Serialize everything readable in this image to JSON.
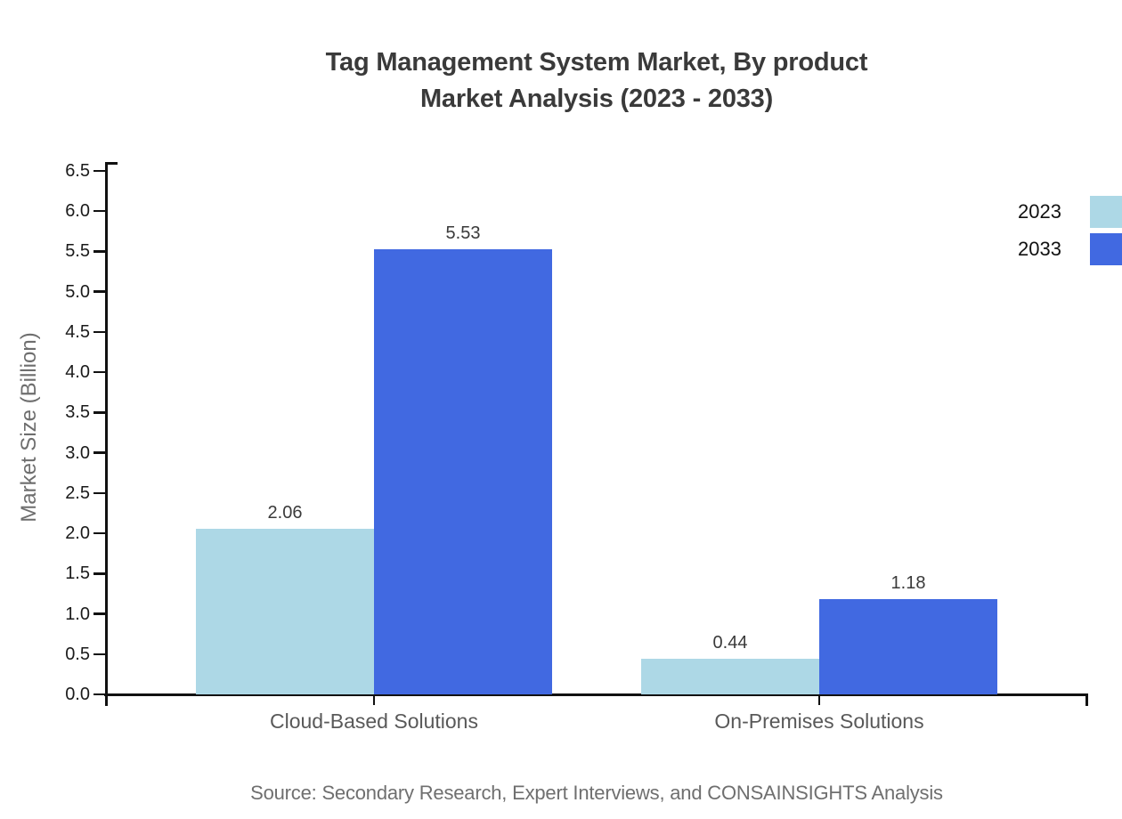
{
  "title": {
    "line1": "Tag Management System Market, By product",
    "line2": "Market Analysis (2023 - 2033)"
  },
  "source": "Source: Secondary Research, Expert Interviews, and CONSAINSIGHTS Analysis",
  "legend": {
    "entries": [
      {
        "label": "2023",
        "color": "#ADD8E6"
      },
      {
        "label": "2033",
        "color": "#4169E1"
      }
    ]
  },
  "chart_data": {
    "type": "bar",
    "title": "Tag Management System Market, By product Market Analysis (2023 - 2033)",
    "categories": [
      "Cloud-Based Solutions",
      "On-Premises Solutions"
    ],
    "series": [
      {
        "name": "2023",
        "color": "#ADD8E6",
        "values": [
          2.06,
          0.44
        ]
      },
      {
        "name": "2033",
        "color": "#4169E1",
        "values": [
          5.53,
          1.18
        ]
      }
    ],
    "value_labels": [
      [
        "2.06",
        "0.44"
      ],
      [
        "5.53",
        "1.18"
      ]
    ],
    "xlabel": "",
    "ylabel": "Market Size (Billion)",
    "ylim": [
      0,
      6.5
    ],
    "ytick_step": 0.5,
    "ytick_labels": [
      "0.0",
      "0.5",
      "1.0",
      "1.5",
      "2.0",
      "2.5",
      "3.0",
      "3.5",
      "4.0",
      "4.5",
      "5.0",
      "5.5",
      "6.0",
      "6.5"
    ],
    "grid": false,
    "legend_position": "right-top-outside"
  }
}
